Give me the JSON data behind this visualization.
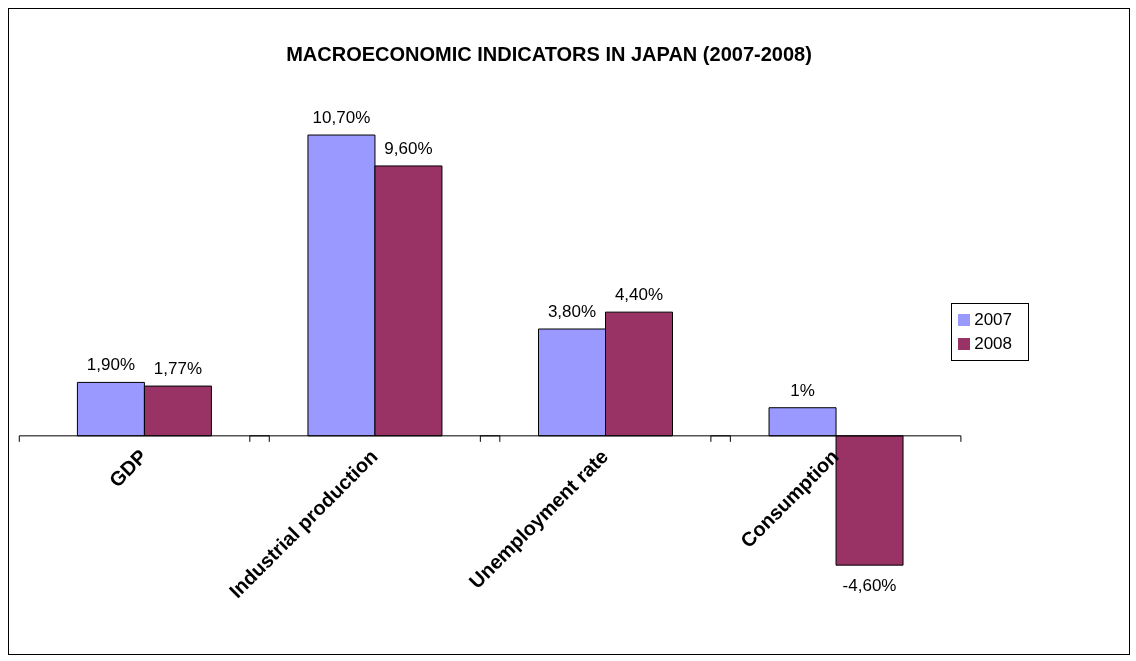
{
  "chart_data": {
    "type": "bar",
    "title": "MACROECONOMIC INDICATORS IN JAPAN (2007-2008)",
    "categories": [
      "GDP",
      "Industrial production",
      "Unemployment rate",
      "Consumption"
    ],
    "series": [
      {
        "name": "2007",
        "color": "#9999ff",
        "values": [
          1.9,
          10.7,
          3.8,
          1
        ],
        "value_labels": [
          "1,90%",
          "10,70%",
          "3,80%",
          "1%"
        ]
      },
      {
        "name": "2008",
        "color": "#993366",
        "values": [
          1.77,
          9.6,
          4.4,
          -4.6
        ],
        "value_labels": [
          "1,77%",
          "9,60%",
          "4,40%",
          "-4,60%"
        ]
      }
    ],
    "legend": "right",
    "grid": false
  }
}
